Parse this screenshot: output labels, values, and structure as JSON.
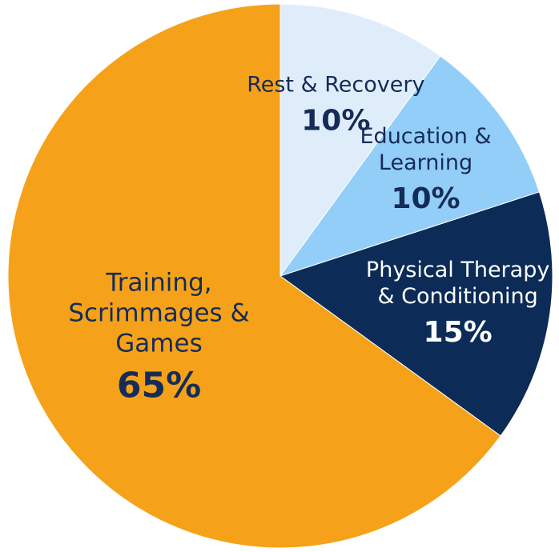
{
  "chart_data": {
    "type": "pie",
    "categories": [
      "Rest & Recovery",
      "Education & Learning",
      "Physical Therapy & Conditioning",
      "Training, Scrimmages & Games"
    ],
    "values": [
      10,
      10,
      15,
      65
    ],
    "value_labels": [
      "10%",
      "10%",
      "15%",
      "65%"
    ],
    "colors": [
      "#dfedfb",
      "#92cef8",
      "#0c2b56",
      "#f5a21a"
    ]
  }
}
